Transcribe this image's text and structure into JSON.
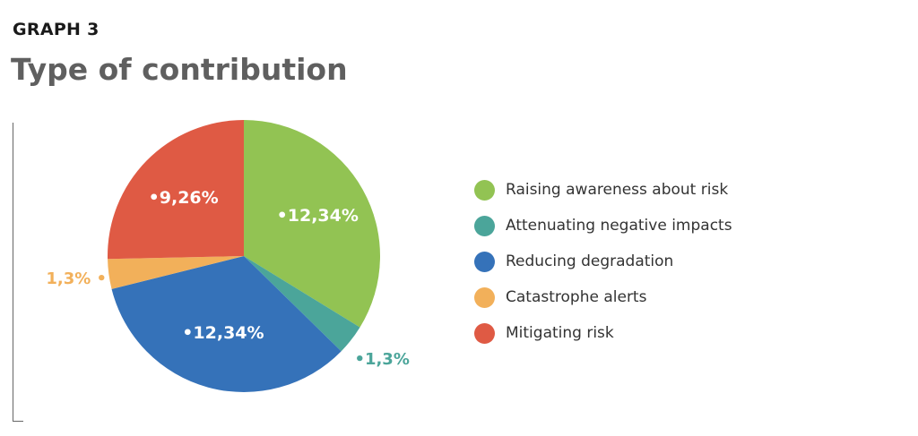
{
  "header": {
    "graph_label": "GRAPH 3",
    "title": "Type of contribution"
  },
  "chart_data": {
    "type": "pie",
    "start_angle_deg": 0,
    "direction": "clockwise",
    "slices": [
      {
        "label": "Raising awareness about risk",
        "value": 12.34,
        "display": "12,34%",
        "color": "#92c353",
        "label_color": "#ffffff",
        "label_inside": true
      },
      {
        "label": "Attenuating negative impacts",
        "value": 1.3,
        "display": "1,3%",
        "color": "#4ba59a",
        "label_color": "#4ba59a",
        "label_inside": false
      },
      {
        "label": "Reducing degradation",
        "value": 12.34,
        "display": "12,34%",
        "color": "#3572b9",
        "label_color": "#ffffff",
        "label_inside": true
      },
      {
        "label": "Catastrophe alerts",
        "value": 1.3,
        "display": "1,3%",
        "color": "#f2b05a",
        "label_color": "#f2b05a",
        "label_inside": false
      },
      {
        "label": "Mitigating risk",
        "value": 9.26,
        "display": "9,26%",
        "color": "#df5a44",
        "label_color": "#ffffff",
        "label_inside": true
      }
    ],
    "legend_placement": "right"
  },
  "legend": {
    "items": [
      {
        "label": "Raising awareness about risk",
        "color": "#92c353"
      },
      {
        "label": "Attenuating negative impacts",
        "color": "#4ba59a"
      },
      {
        "label": "Reducing degradation",
        "color": "#3572b9"
      },
      {
        "label": "Catastrophe alerts",
        "color": "#f2b05a"
      },
      {
        "label": "Mitigating risk",
        "color": "#df5a44"
      }
    ]
  }
}
